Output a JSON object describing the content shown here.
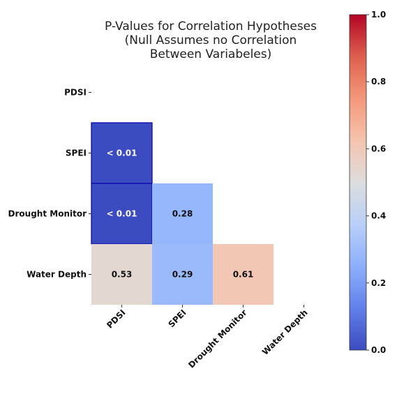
{
  "chart_data": {
    "type": "heatmap",
    "title": [
      "P-Values for Correlation Hypotheses",
      "(Null Assumes no Correlation",
      "Between Variabeles)"
    ],
    "row_labels": [
      "PDSI",
      "SPEI",
      "Drought Monitor",
      "Water Depth"
    ],
    "col_labels": [
      "PDSI",
      "SPEI",
      "Drought Monitor",
      "Water Depth"
    ],
    "mask": "upper triangle including diagonal",
    "cells": [
      {
        "row": 1,
        "col": 0,
        "value": 0.001,
        "label": "< 0.01",
        "highlight": true
      },
      {
        "row": 2,
        "col": 0,
        "value": 0.001,
        "label": "< 0.01",
        "highlight": true
      },
      {
        "row": 2,
        "col": 1,
        "value": 0.28,
        "label": "0.28",
        "highlight": false
      },
      {
        "row": 3,
        "col": 0,
        "value": 0.53,
        "label": "0.53",
        "highlight": false
      },
      {
        "row": 3,
        "col": 1,
        "value": 0.29,
        "label": "0.29",
        "highlight": false
      },
      {
        "row": 3,
        "col": 2,
        "value": 0.61,
        "label": "0.61",
        "highlight": false
      }
    ],
    "colorbar": {
      "colormap": "coolwarm",
      "range": [
        0.0,
        1.0
      ],
      "ticks": [
        "0.0",
        "0.2",
        "0.4",
        "0.6",
        "0.8",
        "1.0"
      ]
    },
    "highlight_border_color": "#0000aa",
    "x_tick_rotation": "45"
  }
}
